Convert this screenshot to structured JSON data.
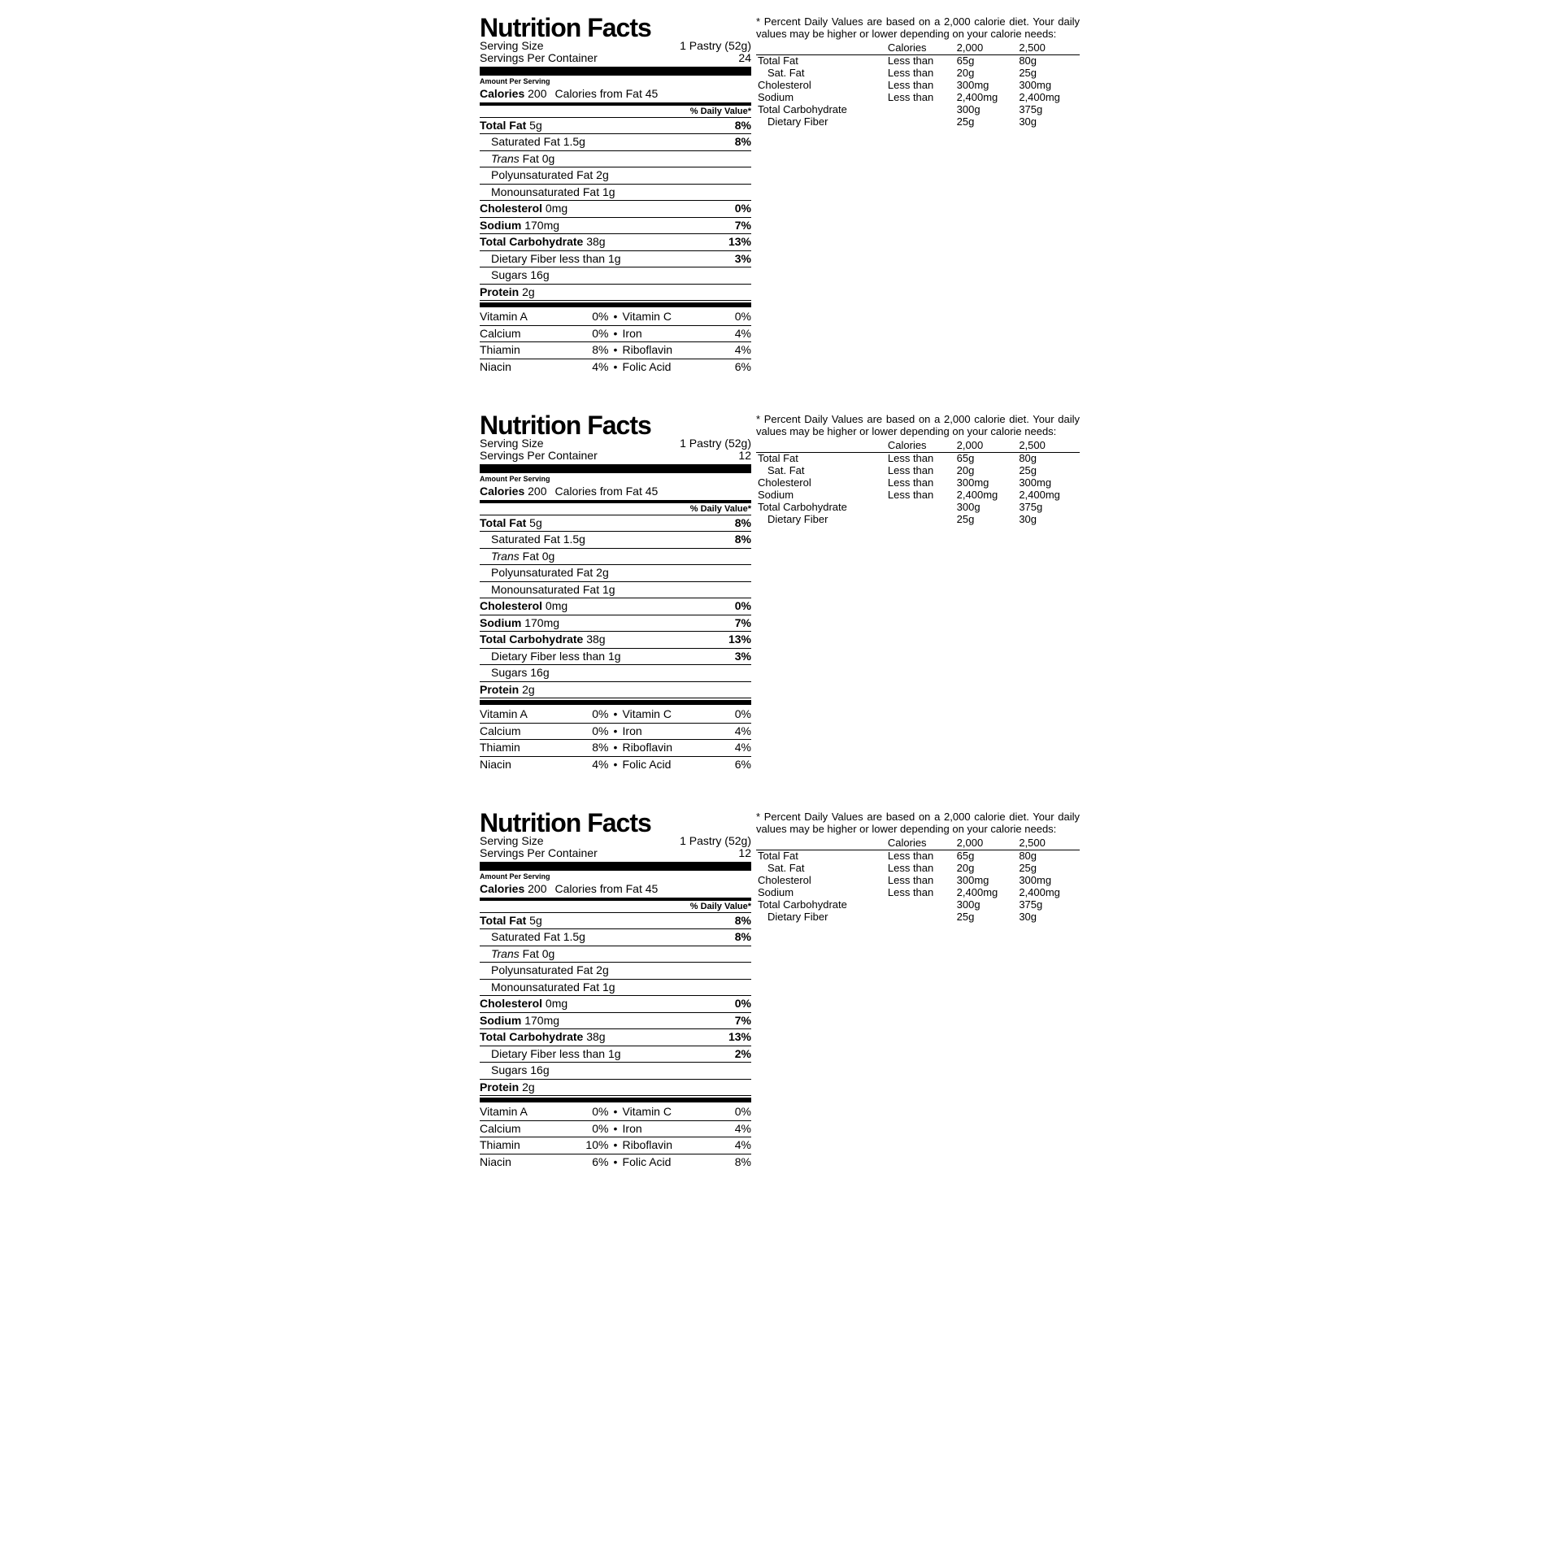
{
  "title": "Nutrition Facts",
  "dv_note": "* Percent Daily Values are based on a 2,000 calorie diet. Your daily values may be higher or lower depending on your calorie needs:",
  "dv_header": [
    "",
    "Calories",
    "2,000",
    "2,500"
  ],
  "dv_rows": [
    {
      "n": "Total Fat",
      "lt": "Less than",
      "a": "65g",
      "b": "80g",
      "indent": false
    },
    {
      "n": "Sat. Fat",
      "lt": "Less than",
      "a": "20g",
      "b": "25g",
      "indent": true
    },
    {
      "n": "Cholesterol",
      "lt": "Less than",
      "a": "300mg",
      "b": "300mg",
      "indent": false
    },
    {
      "n": "Sodium",
      "lt": "Less than",
      "a": "2,400mg",
      "b": "2,400mg",
      "indent": false
    },
    {
      "n": "Total Carbohydrate",
      "lt": "",
      "a": "300g",
      "b": "375g",
      "indent": false
    },
    {
      "n": "Dietary Fiber",
      "lt": "",
      "a": "25g",
      "b": "30g",
      "indent": true
    }
  ],
  "amount_per_serving": "Amount Per Serving",
  "calories_label": "Calories",
  "calories_from_fat_label": "Calories from Fat",
  "dv_col_header": "% Daily Value*",
  "serving_size_label": "Serving Size",
  "serving_size_value": "1 Pastry (52g)",
  "servings_per_container_label": "Servings Per Container",
  "panels": [
    {
      "servings_per_container": "24",
      "calories": "200",
      "calories_from_fat": "45",
      "nutrients": [
        {
          "label": "Total Fat",
          "value": "5g",
          "pct": "8%",
          "bold": true,
          "indent": false
        },
        {
          "label": "Saturated Fat",
          "value": "1.5g",
          "pct": "8%",
          "bold": false,
          "indent": true
        },
        {
          "label": "Trans Fat",
          "value": "0g",
          "pct": "",
          "bold": false,
          "indent": true,
          "italic_label": true
        },
        {
          "label": "Polyunsaturated Fat",
          "value": "2g",
          "pct": "",
          "bold": false,
          "indent": true
        },
        {
          "label": "Monounsaturated Fat",
          "value": "1g",
          "pct": "",
          "bold": false,
          "indent": true
        },
        {
          "label": "Cholesterol",
          "value": "0mg",
          "pct": "0%",
          "bold": true,
          "indent": false
        },
        {
          "label": "Sodium",
          "value": "170mg",
          "pct": "7%",
          "bold": true,
          "indent": false
        },
        {
          "label": "Total Carbohydrate",
          "value": "38g",
          "pct": "13%",
          "bold": true,
          "indent": false
        },
        {
          "label": "Dietary Fiber",
          "value": "less than 1g",
          "pct": "3%",
          "bold": false,
          "indent": true
        },
        {
          "label": "Sugars",
          "value": "16g",
          "pct": "",
          "bold": false,
          "indent": true
        },
        {
          "label": "Protein",
          "value": "2g",
          "pct": "",
          "bold": true,
          "indent": false
        }
      ],
      "vitamins": [
        [
          {
            "n": "Vitamin A",
            "v": "0%"
          },
          {
            "n": "Vitamin C",
            "v": "0%"
          }
        ],
        [
          {
            "n": "Calcium",
            "v": "0%"
          },
          {
            "n": "Iron",
            "v": "4%"
          }
        ],
        [
          {
            "n": "Thiamin",
            "v": "8%"
          },
          {
            "n": "Riboflavin",
            "v": "4%"
          }
        ],
        [
          {
            "n": "Niacin",
            "v": "4%"
          },
          {
            "n": "Folic Acid",
            "v": "6%"
          }
        ]
      ]
    },
    {
      "servings_per_container": "12",
      "calories": "200",
      "calories_from_fat": "45",
      "nutrients": [
        {
          "label": "Total Fat",
          "value": "5g",
          "pct": "8%",
          "bold": true,
          "indent": false
        },
        {
          "label": "Saturated Fat",
          "value": "1.5g",
          "pct": "8%",
          "bold": false,
          "indent": true
        },
        {
          "label": "Trans Fat",
          "value": "0g",
          "pct": "",
          "bold": false,
          "indent": true,
          "italic_label": true
        },
        {
          "label": "Polyunsaturated Fat",
          "value": "2g",
          "pct": "",
          "bold": false,
          "indent": true
        },
        {
          "label": "Monounsaturated Fat",
          "value": "1g",
          "pct": "",
          "bold": false,
          "indent": true
        },
        {
          "label": "Cholesterol",
          "value": "0mg",
          "pct": "0%",
          "bold": true,
          "indent": false
        },
        {
          "label": "Sodium",
          "value": "170mg",
          "pct": "7%",
          "bold": true,
          "indent": false
        },
        {
          "label": "Total Carbohydrate",
          "value": "38g",
          "pct": "13%",
          "bold": true,
          "indent": false
        },
        {
          "label": "Dietary Fiber",
          "value": "less than 1g",
          "pct": "3%",
          "bold": false,
          "indent": true
        },
        {
          "label": "Sugars",
          "value": "16g",
          "pct": "",
          "bold": false,
          "indent": true
        },
        {
          "label": "Protein",
          "value": "2g",
          "pct": "",
          "bold": true,
          "indent": false
        }
      ],
      "vitamins": [
        [
          {
            "n": "Vitamin A",
            "v": "0%"
          },
          {
            "n": "Vitamin C",
            "v": "0%"
          }
        ],
        [
          {
            "n": "Calcium",
            "v": "0%"
          },
          {
            "n": "Iron",
            "v": "4%"
          }
        ],
        [
          {
            "n": "Thiamin",
            "v": "8%"
          },
          {
            "n": "Riboflavin",
            "v": "4%"
          }
        ],
        [
          {
            "n": "Niacin",
            "v": "4%"
          },
          {
            "n": "Folic Acid",
            "v": "6%"
          }
        ]
      ]
    },
    {
      "servings_per_container": "12",
      "calories": "200",
      "calories_from_fat": "45",
      "nutrients": [
        {
          "label": "Total Fat",
          "value": "5g",
          "pct": "8%",
          "bold": true,
          "indent": false
        },
        {
          "label": "Saturated Fat",
          "value": "1.5g",
          "pct": "8%",
          "bold": false,
          "indent": true
        },
        {
          "label": "Trans Fat",
          "value": "0g",
          "pct": "",
          "bold": false,
          "indent": true,
          "italic_label": true
        },
        {
          "label": "Polyunsaturated Fat",
          "value": "2g",
          "pct": "",
          "bold": false,
          "indent": true
        },
        {
          "label": "Monounsaturated Fat",
          "value": "1g",
          "pct": "",
          "bold": false,
          "indent": true
        },
        {
          "label": "Cholesterol",
          "value": "0mg",
          "pct": "0%",
          "bold": true,
          "indent": false
        },
        {
          "label": "Sodium",
          "value": "170mg",
          "pct": "7%",
          "bold": true,
          "indent": false
        },
        {
          "label": "Total Carbohydrate",
          "value": "38g",
          "pct": "13%",
          "bold": true,
          "indent": false
        },
        {
          "label": "Dietary Fiber",
          "value": "less than 1g",
          "pct": "2%",
          "bold": false,
          "indent": true
        },
        {
          "label": "Sugars",
          "value": "16g",
          "pct": "",
          "bold": false,
          "indent": true
        },
        {
          "label": "Protein",
          "value": "2g",
          "pct": "",
          "bold": true,
          "indent": false
        }
      ],
      "vitamins": [
        [
          {
            "n": "Vitamin A",
            "v": "0%"
          },
          {
            "n": "Vitamin C",
            "v": "0%"
          }
        ],
        [
          {
            "n": "Calcium",
            "v": "0%"
          },
          {
            "n": "Iron",
            "v": "4%"
          }
        ],
        [
          {
            "n": "Thiamin",
            "v": "10%"
          },
          {
            "n": "Riboflavin",
            "v": "4%"
          }
        ],
        [
          {
            "n": "Niacin",
            "v": "6%"
          },
          {
            "n": "Folic Acid",
            "v": "8%"
          }
        ]
      ]
    }
  ]
}
